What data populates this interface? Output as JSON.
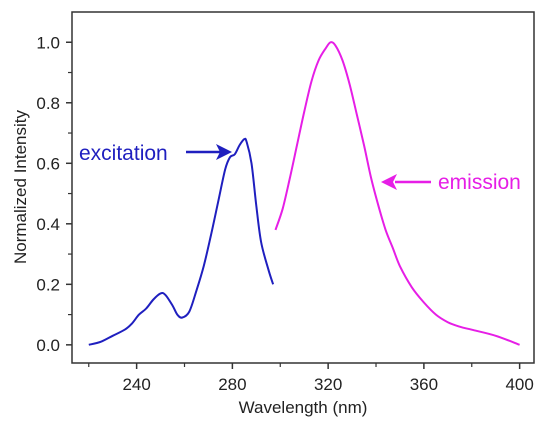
{
  "chart_data": {
    "type": "line",
    "xlabel": "Wavelength (nm)",
    "ylabel": "Normalized Intensity",
    "xlim": [
      213,
      406
    ],
    "ylim": [
      -0.06,
      1.1
    ],
    "xticks": [
      240,
      280,
      320,
      360,
      400
    ],
    "yticks": [
      0.0,
      0.2,
      0.4,
      0.6,
      0.8,
      1.0
    ],
    "ytick_labels": [
      "0.0",
      "0.2",
      "0.4",
      "0.6",
      "0.8",
      "1.0"
    ],
    "series": [
      {
        "name": "excitation",
        "color": "#1f1fbf",
        "points": [
          [
            220,
            0.0
          ],
          [
            225,
            0.01
          ],
          [
            230,
            0.03
          ],
          [
            235,
            0.05
          ],
          [
            238,
            0.07
          ],
          [
            241,
            0.1
          ],
          [
            244,
            0.12
          ],
          [
            247,
            0.15
          ],
          [
            250,
            0.17
          ],
          [
            252,
            0.165
          ],
          [
            255,
            0.13
          ],
          [
            257,
            0.1
          ],
          [
            259,
            0.09
          ],
          [
            262,
            0.11
          ],
          [
            265,
            0.18
          ],
          [
            268,
            0.26
          ],
          [
            271,
            0.36
          ],
          [
            274,
            0.47
          ],
          [
            277,
            0.58
          ],
          [
            279,
            0.62
          ],
          [
            281,
            0.63
          ],
          [
            283,
            0.66
          ],
          [
            285,
            0.68
          ],
          [
            286,
            0.67
          ],
          [
            288,
            0.6
          ],
          [
            290,
            0.46
          ],
          [
            292,
            0.34
          ],
          [
            295,
            0.25
          ],
          [
            297,
            0.2
          ]
        ]
      },
      {
        "name": "emission",
        "color": "#e61ee6",
        "points": [
          [
            298,
            0.38
          ],
          [
            301,
            0.45
          ],
          [
            304,
            0.55
          ],
          [
            307,
            0.66
          ],
          [
            310,
            0.77
          ],
          [
            313,
            0.87
          ],
          [
            316,
            0.94
          ],
          [
            319,
            0.98
          ],
          [
            321,
            1.0
          ],
          [
            323,
            0.99
          ],
          [
            326,
            0.94
          ],
          [
            329,
            0.86
          ],
          [
            332,
            0.76
          ],
          [
            335,
            0.66
          ],
          [
            338,
            0.55
          ],
          [
            341,
            0.46
          ],
          [
            344,
            0.38
          ],
          [
            347,
            0.32
          ],
          [
            350,
            0.26
          ],
          [
            355,
            0.19
          ],
          [
            360,
            0.14
          ],
          [
            365,
            0.1
          ],
          [
            370,
            0.075
          ],
          [
            375,
            0.06
          ],
          [
            380,
            0.05
          ],
          [
            390,
            0.03
          ],
          [
            400,
            0.0
          ]
        ]
      }
    ],
    "annotations": [
      {
        "text": "excitation",
        "color": "#1f1fbf",
        "arrow_to": [
          278,
          0.6
        ]
      },
      {
        "text": "emission",
        "color": "#e61ee6",
        "arrow_to": [
          340,
          0.5
        ]
      }
    ]
  }
}
